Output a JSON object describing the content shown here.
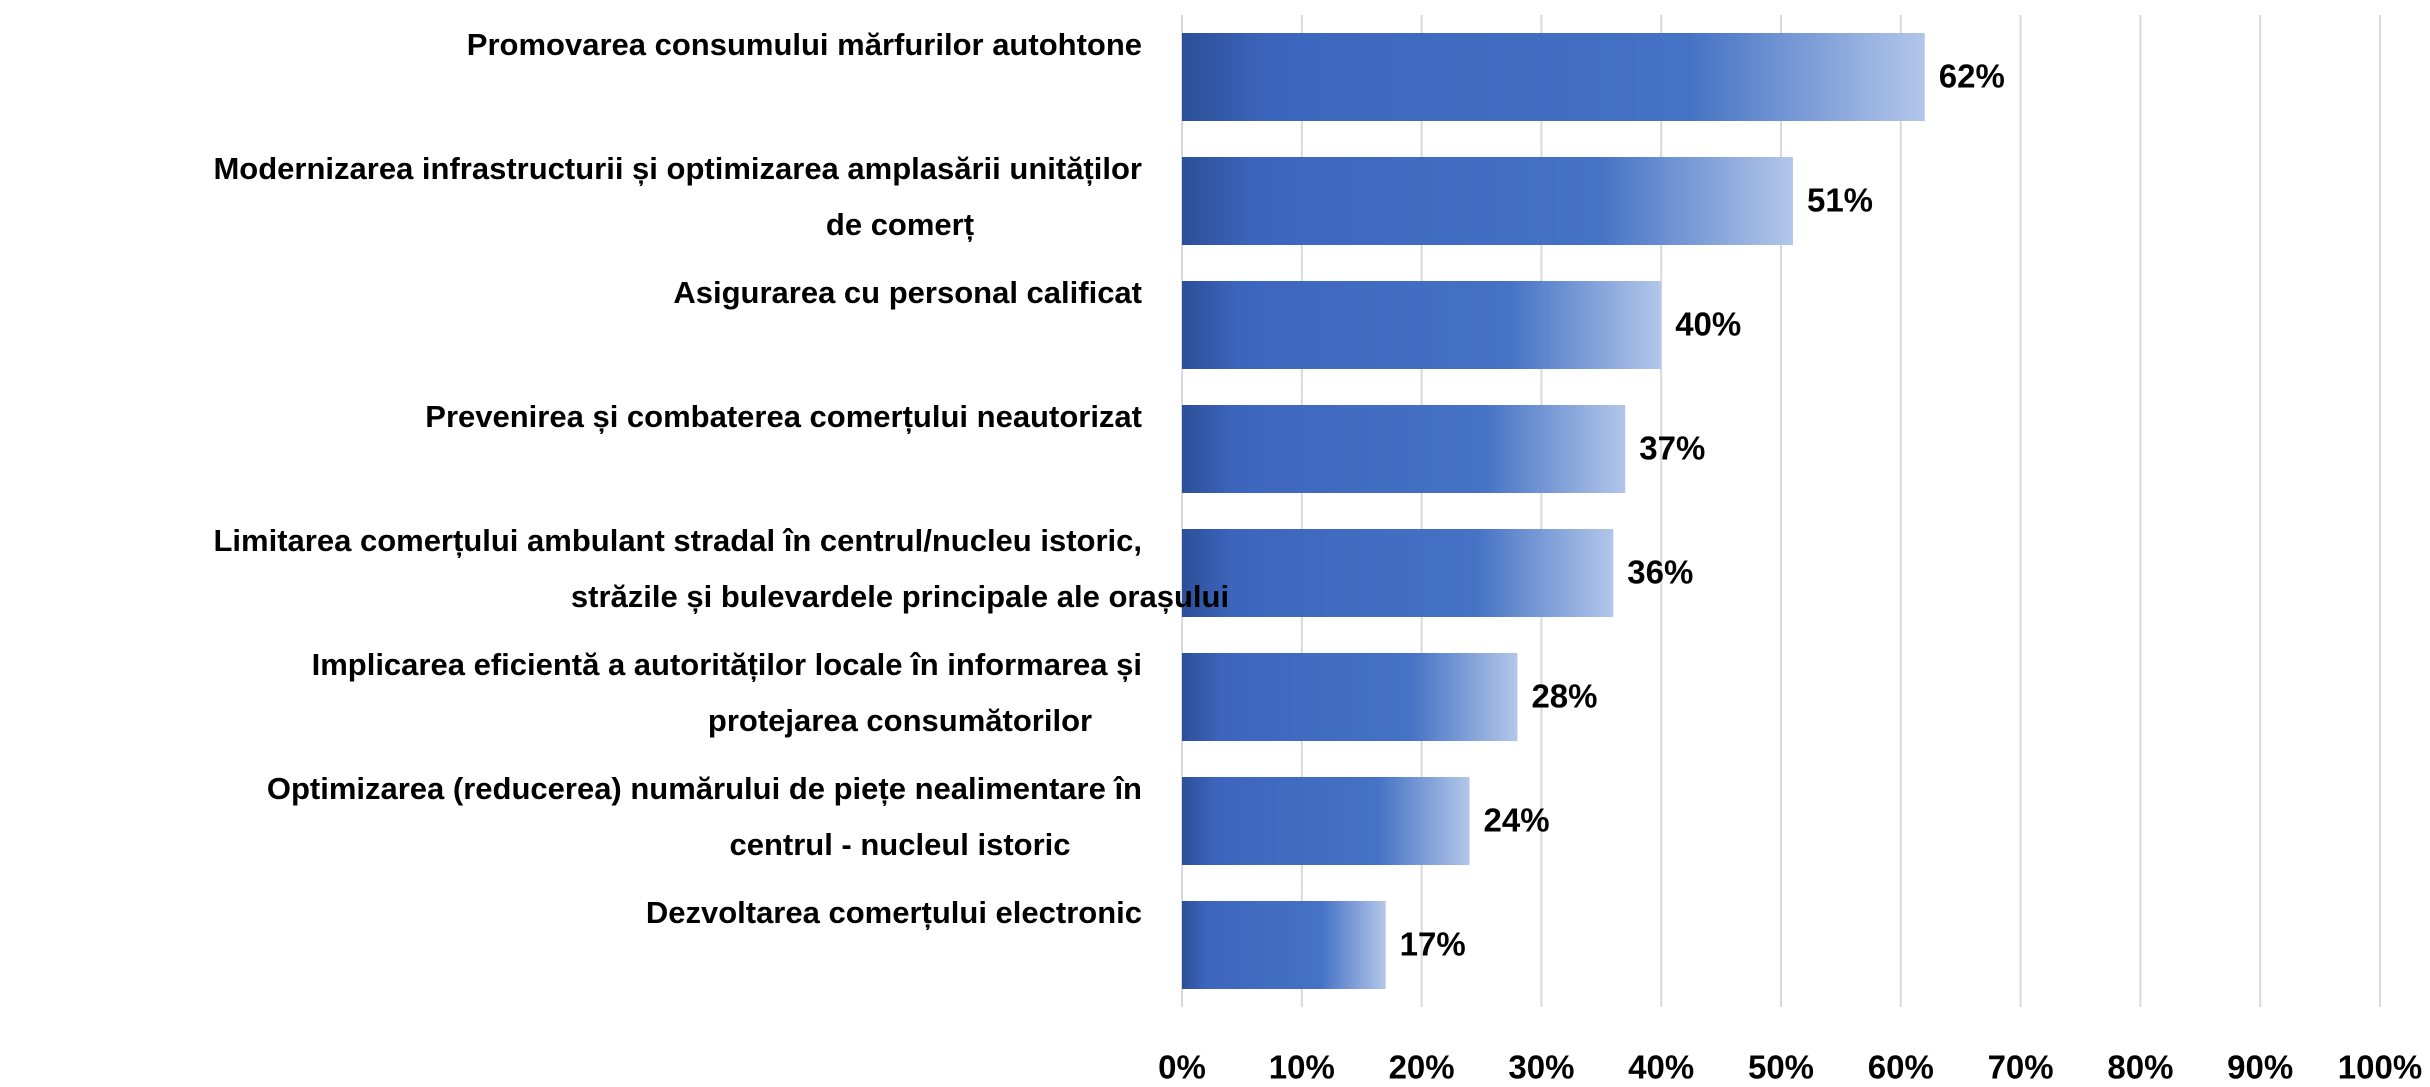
{
  "chart_data": {
    "type": "bar",
    "orientation": "horizontal",
    "categories": [
      "Promovarea consumului mărfurilor autohtone",
      "Modernizarea infrastructurii și  optimizarea amplasării unităților\nde comerț",
      "Asigurarea cu personal calificat",
      "Prevenirea și combaterea comerțului neautorizat",
      "Limitarea comerțului ambulant stradal în centrul/nucleu istoric,\nstrăzile și bulevardele principale ale orașului",
      "Implicarea eficientă a autorităților locale în informarea și\nprotejarea consumătorilor",
      "Optimizarea (reducerea) numărului de piețe nealimentare în\ncentrul - nucleul istoric",
      "Dezvoltarea comerțului electronic"
    ],
    "values": [
      62,
      51,
      40,
      37,
      36,
      28,
      24,
      17
    ],
    "value_labels": [
      "62%",
      "51%",
      "40%",
      "37%",
      "36%",
      "28%",
      "24%",
      "17%"
    ],
    "color": "#4472c4",
    "xlim": [
      0,
      100
    ],
    "xticks": [
      {
        "value": 0,
        "label": "0%"
      },
      {
        "value": 10,
        "label": "10%"
      },
      {
        "value": 20,
        "label": "20%"
      },
      {
        "value": 30,
        "label": "30%"
      },
      {
        "value": 40,
        "label": "40%"
      },
      {
        "value": 50,
        "label": "50%"
      },
      {
        "value": 60,
        "label": "60%"
      },
      {
        "value": 70,
        "label": "70%"
      },
      {
        "value": 80,
        "label": "80%"
      },
      {
        "value": 90,
        "label": "90%"
      },
      {
        "value": 100,
        "label": "100%"
      }
    ],
    "grid": true
  }
}
